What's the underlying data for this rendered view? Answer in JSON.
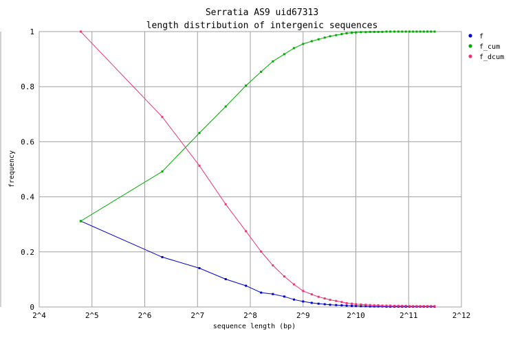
{
  "chart_data": {
    "type": "line",
    "title": "Serratia AS9 uid67313",
    "subtitle": "length distribution of intergenic sequences",
    "xlabel": "sequence length (bp)",
    "ylabel": "frequency",
    "x_scale": "log2",
    "xlim": [
      16,
      4096
    ],
    "ylim": [
      0,
      1
    ],
    "x_ticks": [
      {
        "value": 16,
        "label": "2^4"
      },
      {
        "value": 32,
        "label": "2^5"
      },
      {
        "value": 64,
        "label": "2^6"
      },
      {
        "value": 128,
        "label": "2^7"
      },
      {
        "value": 256,
        "label": "2^8"
      },
      {
        "value": 512,
        "label": "2^9"
      },
      {
        "value": 1024,
        "label": "2^10"
      },
      {
        "value": 2048,
        "label": "2^11"
      },
      {
        "value": 4096,
        "label": "2^12"
      }
    ],
    "y_ticks": [
      {
        "value": 0,
        "label": "0"
      },
      {
        "value": 0.2,
        "label": "0.2"
      },
      {
        "value": 0.4,
        "label": "0.4"
      },
      {
        "value": 0.6,
        "label": "0.6"
      },
      {
        "value": 0.8,
        "label": "0.8"
      },
      {
        "value": 1,
        "label": "1"
      }
    ],
    "grid": true,
    "legend_position": "right",
    "x": [
      27.6,
      80.6,
      131.2,
      185.2,
      241.9,
      295.0,
      344.4,
      400.0,
      454.2,
      512.0,
      573.6,
      627.0,
      680.0,
      730.0,
      790.0,
      850.0,
      907.0,
      970.0,
      1025.0,
      1095.0,
      1165.0,
      1235.0,
      1305.0,
      1375.0,
      1450.0,
      1530.0,
      1610.0,
      1700.0,
      1790.0,
      1880.0,
      1975.0,
      2070.0,
      2170.0,
      2275.0,
      2385.0,
      2500.0,
      2620.0,
      2745.0,
      2880.0
    ],
    "series": [
      {
        "name": "f",
        "color": "#0000cc",
        "values": [
          0.312,
          0.181,
          0.141,
          0.101,
          0.077,
          0.052,
          0.047,
          0.038,
          0.027,
          0.02,
          0.015,
          0.012,
          0.01,
          0.008,
          0.007,
          0.006,
          0.005,
          0.004,
          0.004,
          0.003,
          0.003,
          0.002,
          0.002,
          0.002,
          0.002,
          0.001,
          0.001,
          0.001,
          0.001,
          0.001,
          0.001,
          0.001,
          0.001,
          0.001,
          0.001,
          0.001,
          0.001,
          0.001,
          0.001
        ]
      },
      {
        "name": "f_cum",
        "color": "#00aa00",
        "values": [
          0.312,
          0.492,
          0.632,
          0.728,
          0.804,
          0.854,
          0.892,
          0.918,
          0.94,
          0.955,
          0.965,
          0.972,
          0.978,
          0.983,
          0.987,
          0.991,
          0.994,
          0.996,
          0.997,
          0.998,
          0.998,
          0.999,
          0.999,
          0.999,
          0.999,
          1.0,
          1.0,
          1.0,
          1.0,
          1.0,
          1.0,
          1.0,
          1.0,
          1.0,
          1.0,
          1.0,
          1.0,
          1.0,
          1.0
        ]
      },
      {
        "name": "f_dcum",
        "color": "#ee3377",
        "values": [
          1.0,
          0.69,
          0.513,
          0.373,
          0.275,
          0.201,
          0.151,
          0.111,
          0.082,
          0.058,
          0.046,
          0.037,
          0.031,
          0.026,
          0.022,
          0.018,
          0.014,
          0.012,
          0.01,
          0.009,
          0.008,
          0.007,
          0.006,
          0.006,
          0.005,
          0.005,
          0.005,
          0.004,
          0.004,
          0.004,
          0.004,
          0.003,
          0.003,
          0.003,
          0.003,
          0.003,
          0.003,
          0.003,
          0.003
        ]
      }
    ]
  }
}
